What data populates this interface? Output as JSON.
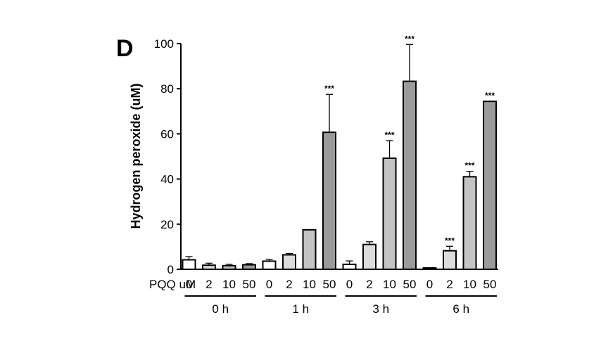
{
  "panel_label": "D",
  "chart_data": {
    "type": "bar",
    "ylabel": "Hydrogen peroxide (uM)",
    "ylim": [
      0,
      100
    ],
    "yticks": [
      0,
      20,
      40,
      60,
      80,
      100
    ],
    "x_row_label": "PQQ uM",
    "grid": false,
    "groups": [
      {
        "label": "0 h",
        "bars": [
          {
            "pqq": "0",
            "value": 4.2,
            "error": 1.4,
            "fill": "#ffffff",
            "sig": ""
          },
          {
            "pqq": "2",
            "value": 1.8,
            "error": 0.9,
            "fill": "#dcdcdc",
            "sig": ""
          },
          {
            "pqq": "10",
            "value": 1.6,
            "error": 0.6,
            "fill": "#c4c4c4",
            "sig": ""
          },
          {
            "pqq": "50",
            "value": 2.0,
            "error": 0.5,
            "fill": "#9a9a9a",
            "sig": ""
          }
        ]
      },
      {
        "label": "1 h",
        "bars": [
          {
            "pqq": "0",
            "value": 3.6,
            "error": 0.8,
            "fill": "#ffffff",
            "sig": ""
          },
          {
            "pqq": "2",
            "value": 6.4,
            "error": 0.6,
            "fill": "#dcdcdc",
            "sig": ""
          },
          {
            "pqq": "10",
            "value": 17.5,
            "error": 0,
            "fill": "#c4c4c4",
            "sig": ""
          },
          {
            "pqq": "50",
            "value": 60.7,
            "error": 16.8,
            "fill": "#9a9a9a",
            "sig": "***"
          }
        ]
      },
      {
        "label": "3 h",
        "bars": [
          {
            "pqq": "0",
            "value": 2.2,
            "error": 1.5,
            "fill": "#ffffff",
            "sig": ""
          },
          {
            "pqq": "2",
            "value": 11.0,
            "error": 1.2,
            "fill": "#dcdcdc",
            "sig": ""
          },
          {
            "pqq": "10",
            "value": 49.2,
            "error": 7.8,
            "fill": "#c4c4c4",
            "sig": "***"
          },
          {
            "pqq": "50",
            "value": 83.3,
            "error": 16.3,
            "fill": "#9a9a9a",
            "sig": "***"
          }
        ]
      },
      {
        "label": "6 h",
        "bars": [
          {
            "pqq": "0",
            "value": 0.6,
            "error": 0,
            "fill": "#ffffff",
            "sig": ""
          },
          {
            "pqq": "2",
            "value": 8.2,
            "error": 2.0,
            "fill": "#dcdcdc",
            "sig": "***"
          },
          {
            "pqq": "10",
            "value": 41.0,
            "error": 2.4,
            "fill": "#c4c4c4",
            "sig": "***"
          },
          {
            "pqq": "50",
            "value": 74.4,
            "error": 0,
            "fill": "#9a9a9a",
            "sig": "***"
          }
        ]
      }
    ]
  }
}
